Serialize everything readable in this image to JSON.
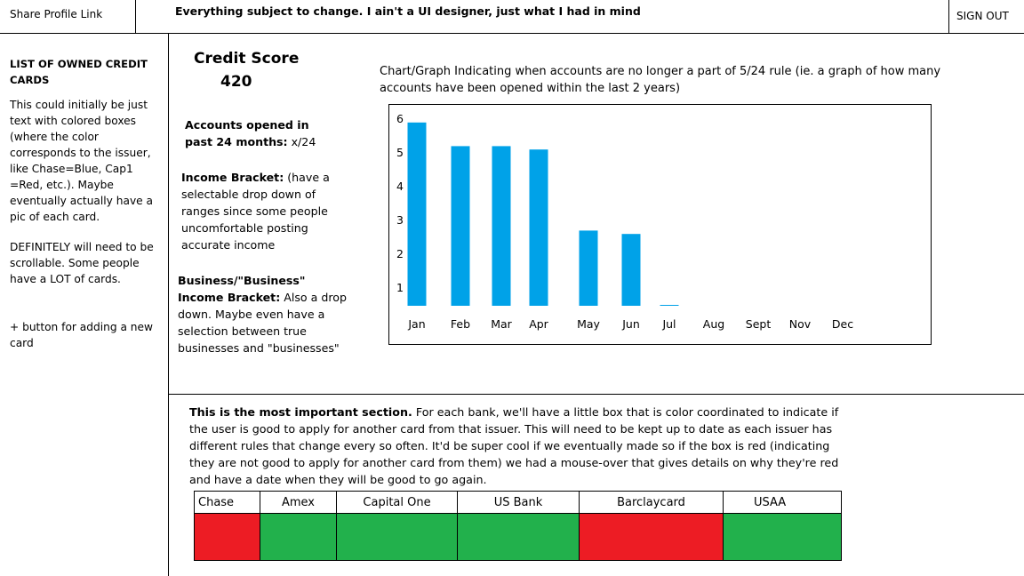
{
  "header": {
    "share_link": "Share Profile Link",
    "note": "Everything subject to change. I ain't a UI designer, just what I had in mind",
    "sign_out": "SIGN OUT"
  },
  "sidebar": {
    "title": "LIST OF OWNED CREDIT CARDS",
    "description": "This could initially be just text with colored boxes (where the color corresponds to the issuer, like Chase=Blue, Cap1 =Red, etc.). Maybe eventually actually have a pic of each card.",
    "scroll_note": "DEFINITELY will need to be scrollable. Some people have a LOT of cards.",
    "add_note": "+ button for adding a new card"
  },
  "info": {
    "credit_score_label": "Credit Score",
    "credit_score_value": "420",
    "accounts_label": "Accounts opened in past 24 months:",
    "accounts_value": "x/24",
    "income_label": "Income Bracket:",
    "income_text": "(have a selectable drop down of ranges since some people uncomfortable posting accurate income",
    "business_label": "Business/\"Business\" Income Bracket:",
    "business_text": "Also a drop down. Maybe even have a selection between true businesses and \"businesses\""
  },
  "chart_caption": "Chart/Graph Indicating when accounts are no longer a part of 5/24 rule (ie. a graph of how many accounts have been opened within the last 2 years)",
  "chart_data": {
    "type": "bar",
    "categories": [
      "Jan",
      "Feb",
      "Mar",
      "Apr",
      "May",
      "Jun",
      "Jul",
      "Aug",
      "Sept",
      "Nov",
      "Dec"
    ],
    "values": [
      5.9,
      5.2,
      5.2,
      5.1,
      2.7,
      2.6,
      0.5,
      0.4,
      0,
      0,
      0
    ],
    "yticks": [
      1,
      2,
      3,
      4,
      5,
      6
    ],
    "ylim": [
      0.5,
      6.2
    ],
    "color": "#00a2e8",
    "grid": false
  },
  "bottom": {
    "important_lead": "This is the most important section.",
    "important_text": "For each bank, we'll have a little box that is color coordinated to indicate if the user is good to apply for another card  from that issuer. This will need to be kept up to date as each issuer has different rules that change every so often. It'd be super cool if we eventually made so if the box is red (indicating they are not good to apply for another card from them) we had a mouse-over that gives details on why they're red and have a date when they will be good to go again.",
    "banks": [
      {
        "name": "Chase",
        "status": "red",
        "color": "#ed1c24"
      },
      {
        "name": "Amex",
        "status": "green",
        "color": "#22b14c"
      },
      {
        "name": "Capital One",
        "status": "green",
        "color": "#22b14c"
      },
      {
        "name": "US Bank",
        "status": "green",
        "color": "#22b14c"
      },
      {
        "name": "Barclaycard",
        "status": "red",
        "color": "#ed1c24"
      },
      {
        "name": "USAA",
        "status": "green",
        "color": "#22b14c"
      }
    ]
  }
}
